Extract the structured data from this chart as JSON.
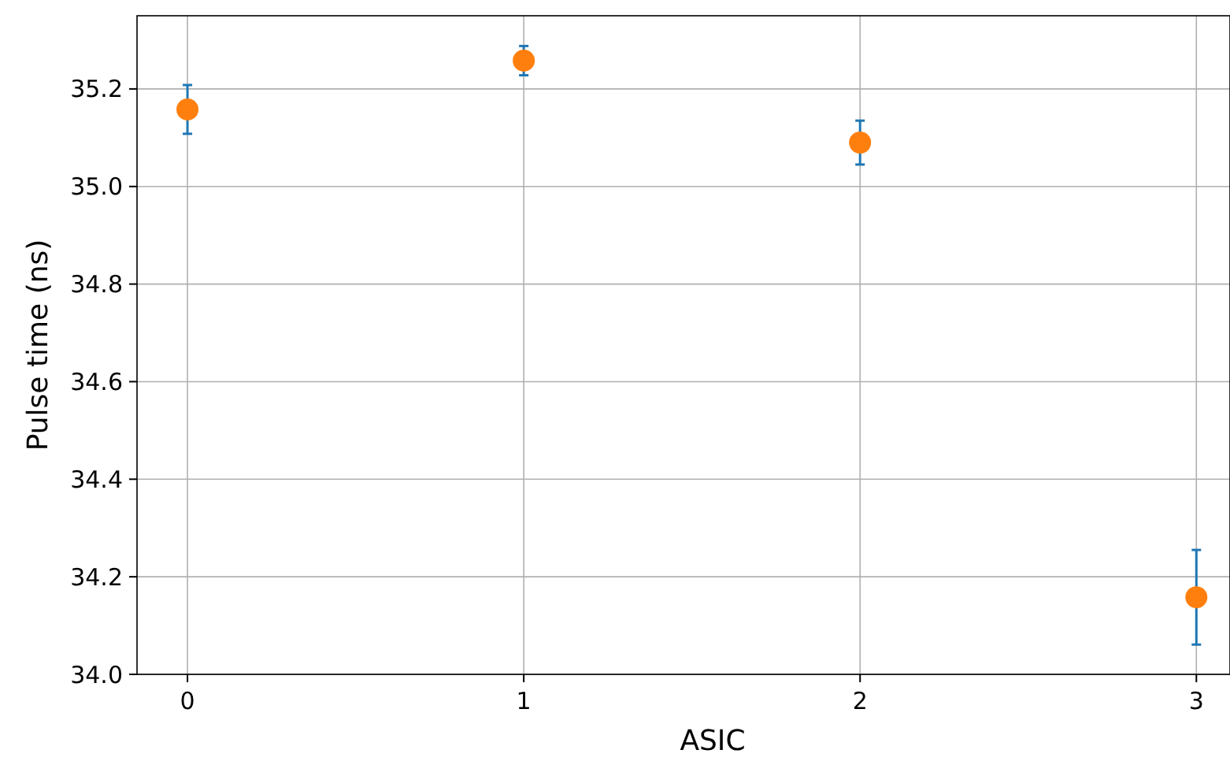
{
  "chart_data": {
    "type": "scatter",
    "xlabel": "ASIC",
    "ylabel": "Pulse time (ns)",
    "x": [
      0,
      1,
      2,
      3
    ],
    "series": [
      {
        "color": "#ff7f0e",
        "values": [
          35.158,
          35.258,
          35.09,
          34.158
        ],
        "errors": [
          0.05,
          0.03,
          0.045,
          0.097
        ]
      }
    ],
    "xlim": [
      -0.15,
      3.1
    ],
    "xticks": [
      0,
      1,
      2,
      3
    ],
    "ylim": [
      34.0,
      35.35
    ],
    "yticks": [
      {
        "value": 34,
        "label": "34.0"
      },
      {
        "value": 34.2,
        "label": "34.2"
      },
      {
        "value": 34.4,
        "label": "34.4"
      },
      {
        "value": 34.6,
        "label": "34.6"
      },
      {
        "value": 34.8,
        "label": "34.8"
      },
      {
        "value": 35,
        "label": "35.0"
      },
      {
        "value": 35.2,
        "label": "35.2"
      }
    ],
    "grid": true,
    "marker": "circle"
  }
}
